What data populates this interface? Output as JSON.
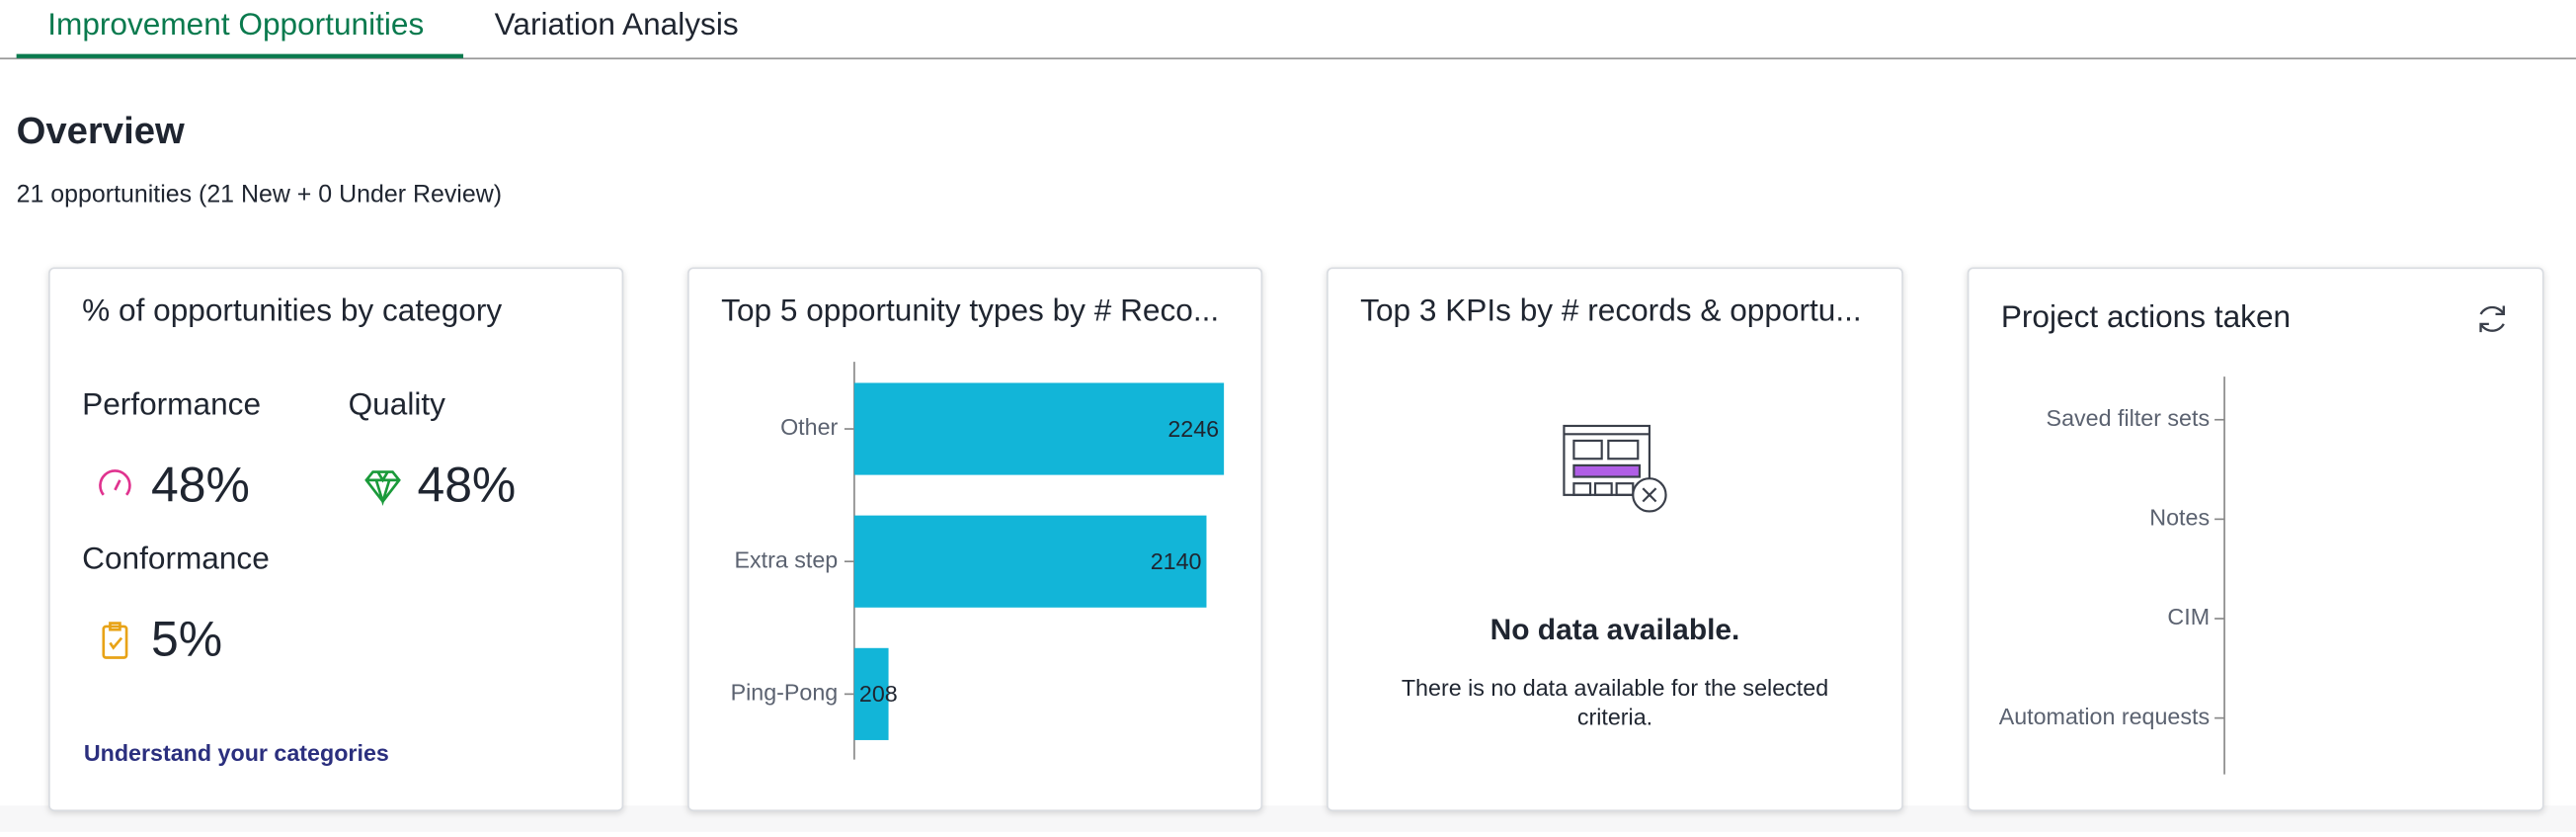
{
  "tabs": [
    "Improvement Opportunities",
    "Variation Analysis"
  ],
  "overview": {
    "title": "Overview",
    "summary": "21 opportunities (21 New + 0 Under Review)"
  },
  "cards": [
    {
      "title": "% of opportunities by category",
      "items": [
        {
          "label": "Performance",
          "value": "48%"
        },
        {
          "label": "Quality",
          "value": "48%"
        },
        {
          "label": "Conformance",
          "value": "5%"
        }
      ],
      "link": "Understand your categories"
    },
    {
      "title": "Top 5 opportunity types by # Reco...",
      "chart_data": {
        "type": "bar",
        "orientation": "horizontal",
        "categories": [
          "Other",
          "Extra step",
          "Ping-Pong"
        ],
        "values": [
          2246,
          2140,
          208
        ],
        "color": "#12b5d8",
        "xlim": [
          0,
          2250
        ]
      }
    },
    {
      "title": "Top 3 KPIs by # records & opportu...",
      "empty_title": "No data available.",
      "empty_text": "There is no data available for the selected criteria."
    },
    {
      "title": "Project actions taken",
      "chart_data": {
        "type": "bar",
        "orientation": "horizontal",
        "categories": [
          "Saved filter sets",
          "Notes",
          "CIM",
          "Automation requests"
        ]
      }
    }
  ]
}
